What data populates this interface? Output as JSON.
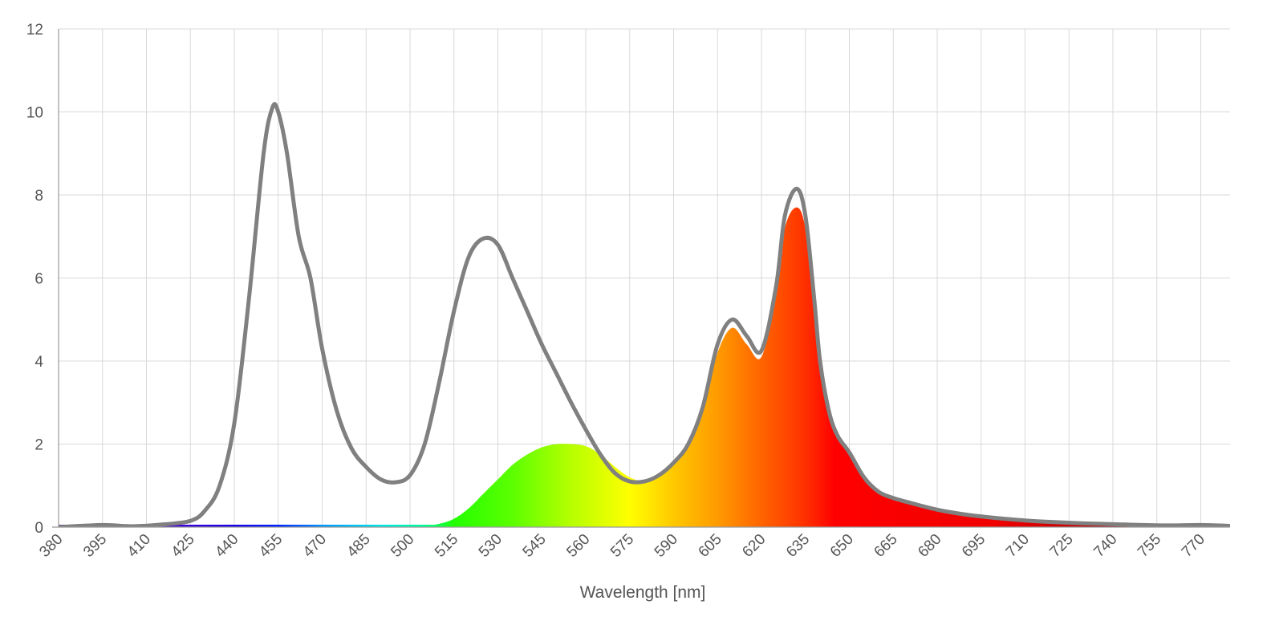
{
  "chart_data": {
    "type": "area",
    "title": "",
    "xlabel": "Wavelength [nm]",
    "ylabel": "",
    "xlim": [
      380,
      780
    ],
    "ylim": [
      0,
      12
    ],
    "x_ticks": [
      380,
      395,
      410,
      425,
      440,
      455,
      470,
      485,
      500,
      515,
      530,
      545,
      560,
      575,
      590,
      605,
      620,
      635,
      650,
      665,
      680,
      695,
      710,
      725,
      740,
      755,
      770
    ],
    "y_ticks": [
      0,
      2,
      4,
      6,
      8,
      10,
      12
    ],
    "grid": true,
    "legend": "none",
    "series": [
      {
        "style": "gray outline",
        "color": "#808080",
        "x": [
          380,
          395,
          405,
          415,
          425,
          430,
          435,
          440,
          445,
          450,
          453,
          455,
          458,
          462,
          466,
          470,
          475,
          480,
          485,
          490,
          495,
          500,
          505,
          510,
          515,
          520,
          525,
          530,
          535,
          540,
          545,
          550,
          555,
          560,
          565,
          570,
          575,
          580,
          585,
          590,
          595,
          600,
          605,
          610,
          615,
          620,
          625,
          628,
          632,
          635,
          638,
          640,
          643,
          646,
          650,
          655,
          660,
          665,
          670,
          680,
          690,
          700,
          710,
          720,
          730,
          740,
          750,
          760,
          770,
          780
        ],
        "values": [
          0.0,
          0.05,
          0.02,
          0.06,
          0.15,
          0.4,
          1.0,
          2.5,
          5.5,
          9.0,
          10.1,
          10.0,
          9.0,
          7.0,
          6.0,
          4.3,
          2.8,
          1.9,
          1.45,
          1.15,
          1.08,
          1.25,
          2.0,
          3.5,
          5.2,
          6.5,
          6.95,
          6.8,
          6.0,
          5.2,
          4.4,
          3.7,
          3.0,
          2.35,
          1.75,
          1.3,
          1.1,
          1.1,
          1.25,
          1.55,
          2.0,
          2.9,
          4.4,
          5.0,
          4.6,
          4.25,
          5.8,
          7.5,
          8.15,
          7.5,
          5.5,
          4.0,
          2.8,
          2.2,
          1.8,
          1.2,
          0.85,
          0.7,
          0.6,
          0.42,
          0.3,
          0.22,
          0.16,
          0.12,
          0.09,
          0.07,
          0.05,
          0.04,
          0.05,
          0.03
        ]
      },
      {
        "style": "spectral-colored fill",
        "x": [
          380,
          440,
          500,
          505,
          510,
          515,
          520,
          525,
          530,
          535,
          540,
          545,
          550,
          555,
          560,
          565,
          570,
          575,
          580,
          585,
          590,
          595,
          600,
          605,
          610,
          615,
          620,
          625,
          628,
          632,
          635,
          638,
          640,
          643,
          646,
          650,
          655,
          660,
          665,
          670,
          680,
          690,
          700,
          710,
          720,
          730,
          740,
          750,
          760,
          770,
          780
        ],
        "values": [
          0.0,
          0.0,
          0.0,
          0.03,
          0.08,
          0.2,
          0.45,
          0.8,
          1.15,
          1.5,
          1.75,
          1.92,
          2.0,
          2.0,
          1.95,
          1.75,
          1.45,
          1.2,
          1.1,
          1.2,
          1.5,
          2.0,
          2.9,
          4.2,
          4.8,
          4.4,
          4.1,
          5.6,
          7.2,
          7.7,
          7.2,
          5.4,
          3.9,
          2.8,
          2.2,
          1.8,
          1.2,
          0.85,
          0.7,
          0.6,
          0.42,
          0.3,
          0.22,
          0.16,
          0.12,
          0.09,
          0.07,
          0.05,
          0.04,
          0.05,
          0.03
        ]
      }
    ]
  }
}
